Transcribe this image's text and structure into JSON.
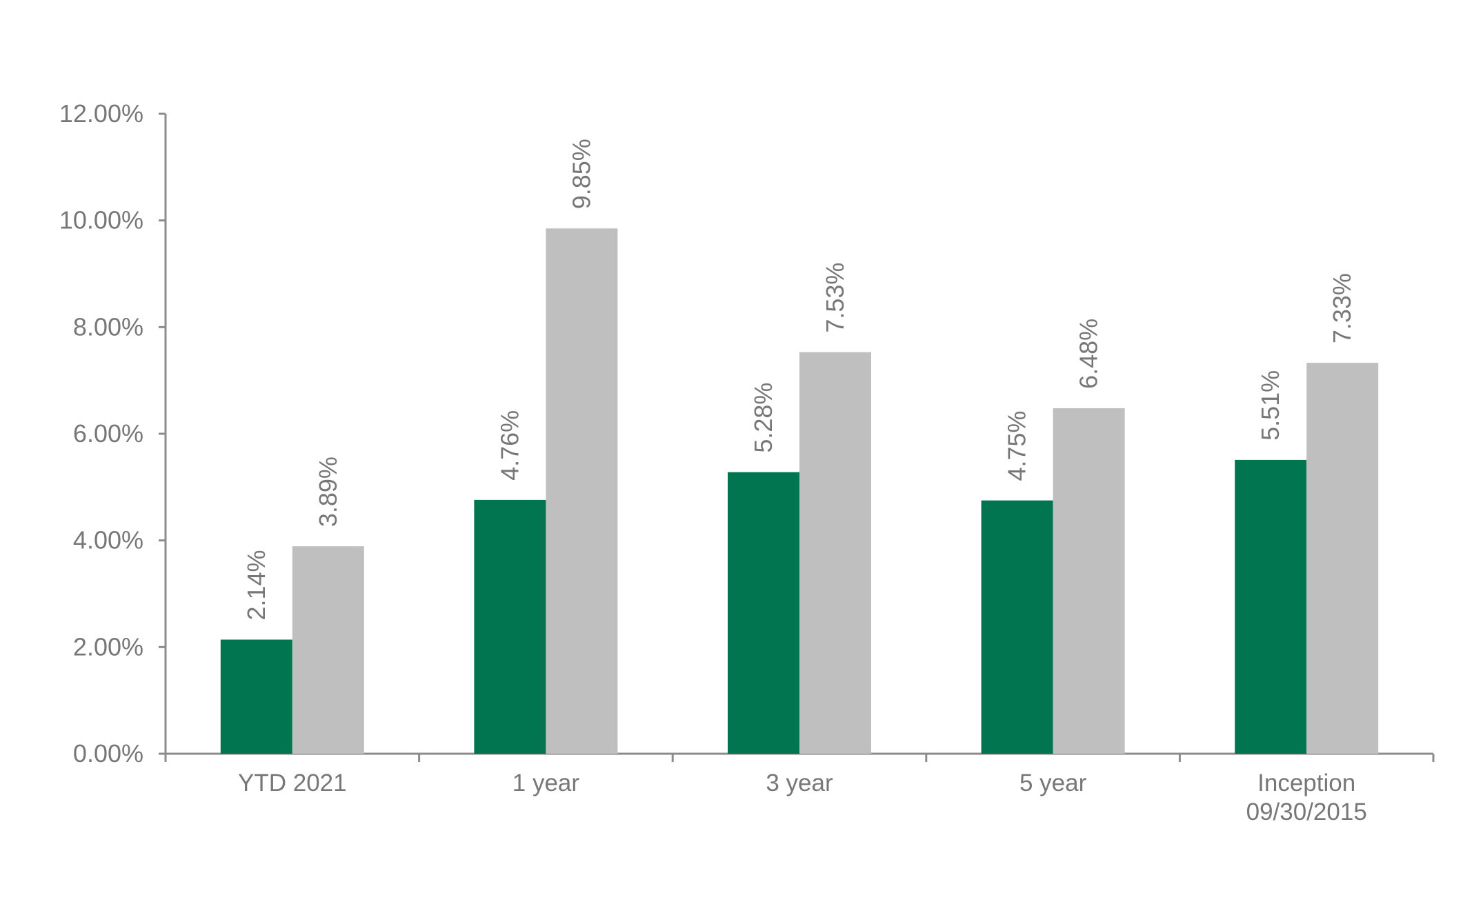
{
  "chart_data": {
    "type": "bar",
    "categories": [
      [
        "YTD 2021"
      ],
      [
        "1 year"
      ],
      [
        "3 year"
      ],
      [
        "5 year"
      ],
      [
        "Inception",
        "09/30/2015"
      ]
    ],
    "series": [
      {
        "color": "#007550",
        "values": [
          2.14,
          4.76,
          5.28,
          4.75,
          5.51
        ],
        "labels": [
          "2.14%",
          "4.76%",
          "5.28%",
          "4.75%",
          "5.51%"
        ]
      },
      {
        "color": "#bfbfbf",
        "values": [
          3.89,
          9.85,
          7.53,
          6.48,
          7.33
        ],
        "labels": [
          "3.89%",
          "9.85%",
          "7.53%",
          "6.48%",
          "7.33%"
        ]
      }
    ],
    "y_ticks": [
      "0.00%",
      "2.00%",
      "4.00%",
      "6.00%",
      "8.00%",
      "10.00%",
      "12.00%"
    ],
    "ylim": [
      0,
      12
    ],
    "grid": false,
    "legend": "none"
  }
}
